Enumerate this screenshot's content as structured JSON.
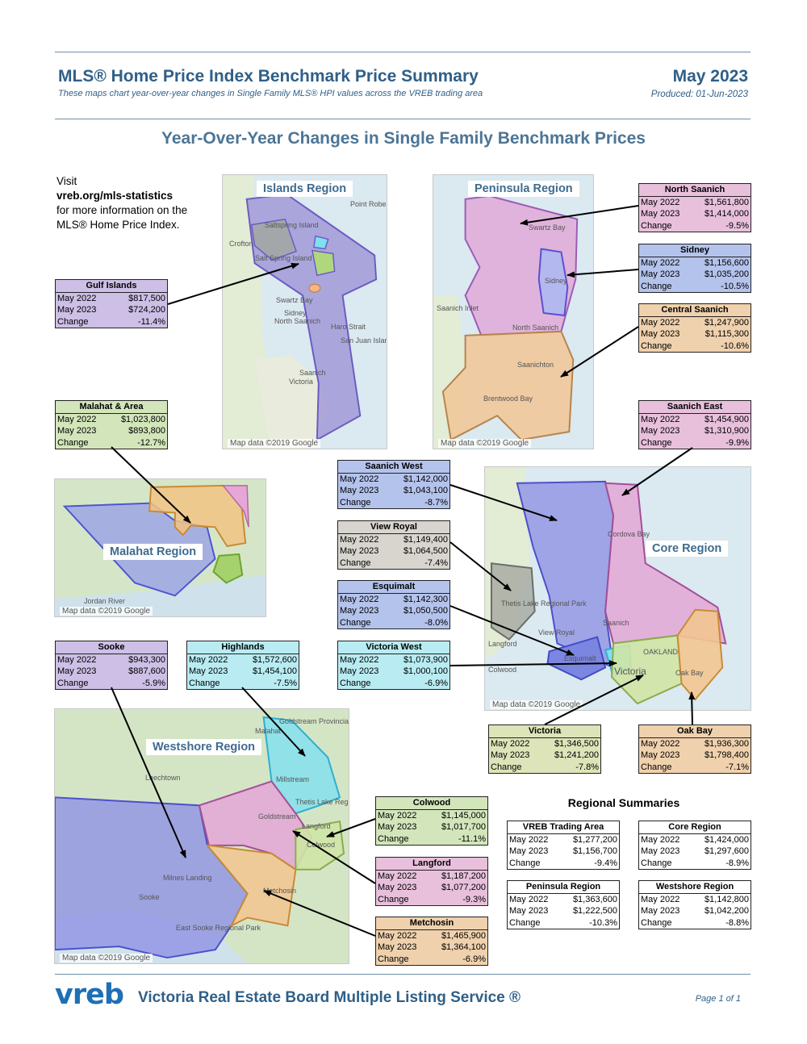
{
  "header": {
    "title": "MLS® Home Price Index Benchmark Price Summary",
    "subtitle": "These maps chart year-over-year changes in Single Family MLS® HPI values across the VREB trading area",
    "month": "May 2023",
    "produced": "Produced: 01-Jun-2023"
  },
  "main_heading": "Year-Over-Year Changes in Single Family Benchmark Prices",
  "visit": {
    "line1": "Visit",
    "link": "vreb.org/mls-statistics",
    "line3": "for more information on the",
    "line4": "MLS® Home Price Index."
  },
  "maps": {
    "islands": {
      "label": "Islands Region",
      "credit": "Map data ©2019 Google",
      "places": [
        "Point Robe",
        "Saltspring Island",
        "Crofton",
        "Salt Spring Island",
        "Swartz Bay",
        "Sidney",
        "North Saanich",
        "San Juan Island",
        "Saanich",
        "Victoria",
        "Haro Strait"
      ]
    },
    "peninsula": {
      "label": "Peninsula Region",
      "credit": "Map data ©2019 Google",
      "places": [
        "Swartz Bay",
        "Sidney",
        "North Saanich",
        "Saanich Inlet",
        "Saanichton",
        "Brentwood Bay"
      ]
    },
    "malahat": {
      "label": "Malahat Region",
      "credit": "Map data ©2019 Google",
      "places": [
        "Jordan River"
      ]
    },
    "core": {
      "label": "Core Region",
      "credit": "Map data ©2019 Google",
      "places": [
        "Cordova Bay",
        "Thetis Lake Regional Park",
        "View Royal",
        "Saanich",
        "Esquimalt",
        "Victoria",
        "OAKLAND",
        "Oak Bay",
        "Colwood",
        "Langford"
      ]
    },
    "westshore": {
      "label": "Westshore Region",
      "credit": "Map data ©2019 Google",
      "places": [
        "Goldstream Provincial Park",
        "Malahat",
        "Millstream",
        "Thetis Lake Regional Par",
        "Goldstream",
        "Langford",
        "Colwood",
        "Metchosin",
        "Milnes Landing",
        "Sooke",
        "East Sooke Regional Park",
        "Leechtown"
      ]
    }
  },
  "boxes": {
    "north_saanich": {
      "title": "North Saanich",
      "rows": [
        [
          "May 2022",
          "$1,561,800"
        ],
        [
          "May 2023",
          "$1,414,000"
        ],
        [
          "Change",
          "-9.5%"
        ]
      ]
    },
    "sidney": {
      "title": "Sidney",
      "rows": [
        [
          "May 2022",
          "$1,156,600"
        ],
        [
          "May 2023",
          "$1,035,200"
        ],
        [
          "Change",
          "-10.5%"
        ]
      ]
    },
    "central_saanich": {
      "title": "Central Saanich",
      "rows": [
        [
          "May 2022",
          "$1,247,900"
        ],
        [
          "May 2023",
          "$1,115,300"
        ],
        [
          "Change",
          "-10.6%"
        ]
      ]
    },
    "gulf_islands": {
      "title": "Gulf Islands",
      "rows": [
        [
          "May 2022",
          "$817,500"
        ],
        [
          "May 2023",
          "$724,200"
        ],
        [
          "Change",
          "-11.4%"
        ]
      ]
    },
    "malahat": {
      "title": "Malahat & Area",
      "rows": [
        [
          "May 2022",
          "$1,023,800"
        ],
        [
          "May 2023",
          "$893,800"
        ],
        [
          "Change",
          "-12.7%"
        ]
      ]
    },
    "saanich_east": {
      "title": "Saanich East",
      "rows": [
        [
          "May 2022",
          "$1,454,900"
        ],
        [
          "May 2023",
          "$1,310,900"
        ],
        [
          "Change",
          "-9.9%"
        ]
      ]
    },
    "saanich_west": {
      "title": "Saanich West",
      "rows": [
        [
          "May 2022",
          "$1,142,000"
        ],
        [
          "May 2023",
          "$1,043,100"
        ],
        [
          "Change",
          "-8.7%"
        ]
      ]
    },
    "view_royal": {
      "title": "View Royal",
      "rows": [
        [
          "May 2022",
          "$1,149,400"
        ],
        [
          "May 2023",
          "$1,064,500"
        ],
        [
          "Change",
          "-7.4%"
        ]
      ]
    },
    "esquimalt": {
      "title": "Esquimalt",
      "rows": [
        [
          "May 2022",
          "$1,142,300"
        ],
        [
          "May 2023",
          "$1,050,500"
        ],
        [
          "Change",
          "-8.0%"
        ]
      ]
    },
    "sooke": {
      "title": "Sooke",
      "rows": [
        [
          "May 2022",
          "$943,300"
        ],
        [
          "May 2023",
          "$887,600"
        ],
        [
          "Change",
          "-5.9%"
        ]
      ]
    },
    "highlands": {
      "title": "Highlands",
      "rows": [
        [
          "May 2022",
          "$1,572,600"
        ],
        [
          "May 2023",
          "$1,454,100"
        ],
        [
          "Change",
          "-7.5%"
        ]
      ]
    },
    "victoria_west": {
      "title": "Victoria West",
      "rows": [
        [
          "May 2022",
          "$1,073,900"
        ],
        [
          "May 2023",
          "$1,000,100"
        ],
        [
          "Change",
          "-6.9%"
        ]
      ]
    },
    "victoria": {
      "title": "Victoria",
      "rows": [
        [
          "May 2022",
          "$1,346,500"
        ],
        [
          "May 2023",
          "$1,241,200"
        ],
        [
          "Change",
          "-7.8%"
        ]
      ]
    },
    "oak_bay": {
      "title": "Oak Bay",
      "rows": [
        [
          "May 2022",
          "$1,936,300"
        ],
        [
          "May 2023",
          "$1,798,400"
        ],
        [
          "Change",
          "-7.1%"
        ]
      ]
    },
    "colwood": {
      "title": "Colwood",
      "rows": [
        [
          "May 2022",
          "$1,145,000"
        ],
        [
          "May 2023",
          "$1,017,700"
        ],
        [
          "Change",
          "-11.1%"
        ]
      ]
    },
    "langford": {
      "title": "Langford",
      "rows": [
        [
          "May 2022",
          "$1,187,200"
        ],
        [
          "May 2023",
          "$1,077,200"
        ],
        [
          "Change",
          "-9.3%"
        ]
      ]
    },
    "metchosin": {
      "title": "Metchosin",
      "rows": [
        [
          "May 2022",
          "$1,465,900"
        ],
        [
          "May 2023",
          "$1,364,100"
        ],
        [
          "Change",
          "-6.9%"
        ]
      ]
    }
  },
  "regional": {
    "heading": "Regional Summaries",
    "vreb": {
      "title": "VREB Trading Area",
      "rows": [
        [
          "May 2022",
          "$1,277,200"
        ],
        [
          "May 2023",
          "$1,156,700"
        ],
        [
          "Change",
          "-9.4%"
        ]
      ]
    },
    "core": {
      "title": "Core Region",
      "rows": [
        [
          "May 2022",
          "$1,424,000"
        ],
        [
          "May 2023",
          "$1,297,600"
        ],
        [
          "Change",
          "-8.9%"
        ]
      ]
    },
    "peninsula": {
      "title": "Peninsula Region",
      "rows": [
        [
          "May 2022",
          "$1,363,600"
        ],
        [
          "May 2023",
          "$1,222,500"
        ],
        [
          "Change",
          "-10.3%"
        ]
      ]
    },
    "westshore": {
      "title": "Westshore Region",
      "rows": [
        [
          "May 2022",
          "$1,142,800"
        ],
        [
          "May 2023",
          "$1,042,200"
        ],
        [
          "Change",
          "-8.8%"
        ]
      ]
    }
  },
  "colors": {
    "heading_blue": "#2f5f88",
    "logo_blue": "#1e6fb5"
  },
  "footer": {
    "logo_text": "vreb",
    "title": "Victoria Real Estate Board Multiple Listing Service ®",
    "page": "Page 1 of 1"
  }
}
